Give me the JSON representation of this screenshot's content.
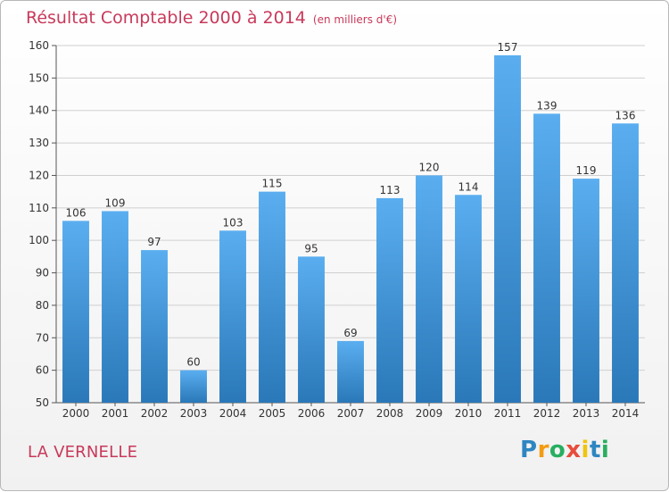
{
  "title": "Résultat Comptable 2000 à 2014",
  "unit_note": "(en milliers d'€)",
  "commune": "LA VERNELLE",
  "logo": {
    "letters": [
      "P",
      "r",
      "o",
      "x",
      "i",
      "t",
      "i"
    ],
    "colors": [
      "#2e86c1",
      "#f39c12",
      "#27ae60",
      "#e74c3c",
      "#f1c40f",
      "#2e86c1",
      "#27ae60"
    ]
  },
  "colors": {
    "bar_top": "#5aaef0",
    "bar_bottom": "#2a78b8",
    "title": "#c8395a",
    "grid": "#d0d0d0",
    "axis_text": "#333333"
  },
  "chart_data": {
    "type": "bar",
    "categories": [
      "2000",
      "2001",
      "2002",
      "2003",
      "2004",
      "2005",
      "2006",
      "2007",
      "2008",
      "2009",
      "2010",
      "2011",
      "2012",
      "2013",
      "2014"
    ],
    "values": [
      106,
      109,
      97,
      60,
      103,
      115,
      95,
      69,
      113,
      120,
      114,
      157,
      139,
      119,
      136
    ],
    "yticks": [
      50,
      60,
      70,
      80,
      90,
      100,
      110,
      120,
      130,
      140,
      150,
      160
    ],
    "ylim": [
      50,
      160
    ],
    "grid": true,
    "data_labels": true
  }
}
